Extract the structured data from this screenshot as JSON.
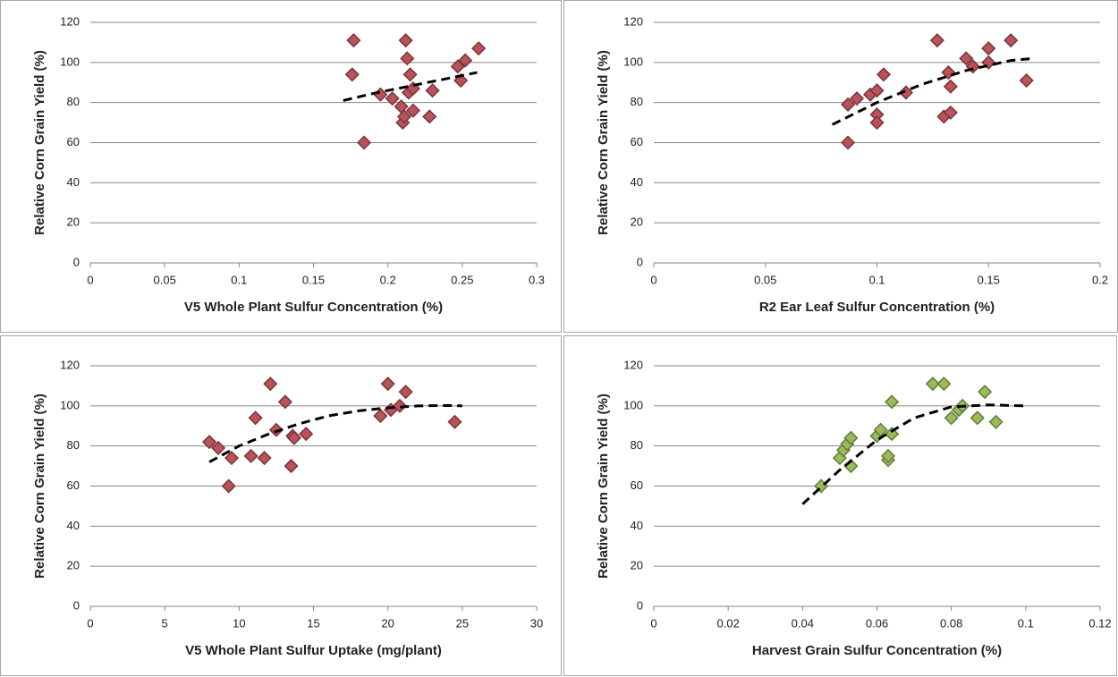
{
  "chart_data": [
    {
      "type": "scatter",
      "x_label": "V5 Whole Plant Sulfur Concentration (%)",
      "y_label": "Relative Corn Grain Yield (%)",
      "xlim": [
        0,
        0.3
      ],
      "xticks": [
        0,
        0.05,
        0.1,
        0.15,
        0.2,
        0.25,
        0.3
      ],
      "ylim": [
        0,
        120
      ],
      "yticks": [
        0,
        20,
        40,
        60,
        80,
        100,
        120
      ],
      "grid": true,
      "color": "#b9525b",
      "x": [
        0.177,
        0.176,
        0.184,
        0.195,
        0.203,
        0.209,
        0.21,
        0.211,
        0.212,
        0.213,
        0.215,
        0.214,
        0.217,
        0.217,
        0.228,
        0.23,
        0.247,
        0.249,
        0.252,
        0.261
      ],
      "values": [
        111,
        94,
        60,
        84,
        82,
        78,
        70,
        73,
        111,
        102,
        94,
        85,
        87,
        76,
        73,
        86,
        98,
        91,
        101,
        107
      ],
      "trendline": {
        "x": [
          0.17,
          0.19,
          0.21,
          0.23,
          0.25,
          0.26
        ],
        "values": [
          81,
          84.5,
          87.5,
          90.5,
          93.5,
          95
        ]
      }
    },
    {
      "type": "scatter",
      "x_label": "R2 Ear Leaf Sulfur Concentration (%)",
      "y_label": "Relative Corn Grain Yield (%)",
      "xlim": [
        0,
        0.2
      ],
      "xticks": [
        0,
        0.05,
        0.1,
        0.15,
        0.2
      ],
      "ylim": [
        0,
        120
      ],
      "yticks": [
        0,
        20,
        40,
        60,
        80,
        100,
        120
      ],
      "grid": true,
      "color": "#b9525b",
      "x": [
        0.087,
        0.087,
        0.091,
        0.097,
        0.1,
        0.1,
        0.1,
        0.103,
        0.113,
        0.127,
        0.13,
        0.132,
        0.133,
        0.133,
        0.14,
        0.143,
        0.15,
        0.15,
        0.16,
        0.167
      ],
      "values": [
        60,
        79,
        82,
        84,
        86,
        74,
        70,
        94,
        85,
        111,
        73,
        95,
        75,
        88,
        102,
        98,
        107,
        100,
        111,
        91
      ],
      "trendline": {
        "x": [
          0.08,
          0.1,
          0.12,
          0.14,
          0.16,
          0.17
        ],
        "values": [
          69,
          80,
          89,
          96,
          101,
          102
        ]
      }
    },
    {
      "type": "scatter",
      "x_label": "V5 Whole Plant Sulfur Uptake (mg/plant)",
      "y_label": "Relative Corn Grain Yield (%)",
      "xlim": [
        0,
        30
      ],
      "xticks": [
        0,
        5,
        10,
        15,
        20,
        25,
        30
      ],
      "ylim": [
        0,
        120
      ],
      "yticks": [
        0,
        20,
        40,
        60,
        80,
        100,
        120
      ],
      "grid": true,
      "color": "#b9525b",
      "x": [
        8,
        8.6,
        9.3,
        9.5,
        10.8,
        11.1,
        11.7,
        12.1,
        12.5,
        13.1,
        13.5,
        13.6,
        13.7,
        14.5,
        19.5,
        20,
        20.2,
        20.8,
        21.2,
        24.5
      ],
      "values": [
        82,
        79,
        60,
        74,
        75,
        94,
        74,
        111,
        88,
        102,
        70,
        85,
        84,
        86,
        95,
        111,
        98,
        100,
        107,
        92
      ],
      "trendline": {
        "x": [
          8,
          10,
          12,
          14,
          16,
          18,
          20,
          22,
          24,
          25
        ],
        "values": [
          72,
          80,
          86,
          91,
          95,
          97.5,
          99,
          100,
          100.2,
          100
        ]
      }
    },
    {
      "type": "scatter",
      "x_label": "Harvest Grain Sulfur Concentration (%)",
      "y_label": "Relative Corn Grain Yield (%)",
      "xlim": [
        0,
        0.12
      ],
      "xticks": [
        0,
        0.02,
        0.04,
        0.06,
        0.08,
        0.1,
        0.12
      ],
      "ylim": [
        0,
        120
      ],
      "yticks": [
        0,
        20,
        40,
        60,
        80,
        100,
        120
      ],
      "grid": true,
      "color": "#9bbb59",
      "x": [
        0.045,
        0.05,
        0.051,
        0.052,
        0.053,
        0.053,
        0.06,
        0.061,
        0.063,
        0.063,
        0.064,
        0.064,
        0.075,
        0.078,
        0.08,
        0.082,
        0.083,
        0.087,
        0.089,
        0.092
      ],
      "values": [
        60,
        74,
        78,
        81,
        84,
        70,
        85,
        88,
        73,
        75,
        86,
        102,
        111,
        111,
        94,
        98,
        100,
        94,
        107,
        92
      ],
      "trendline": {
        "x": [
          0.04,
          0.05,
          0.06,
          0.07,
          0.08,
          0.09,
          0.1
        ],
        "values": [
          51,
          68,
          83,
          94,
          99.5,
          100.5,
          100
        ]
      }
    }
  ]
}
